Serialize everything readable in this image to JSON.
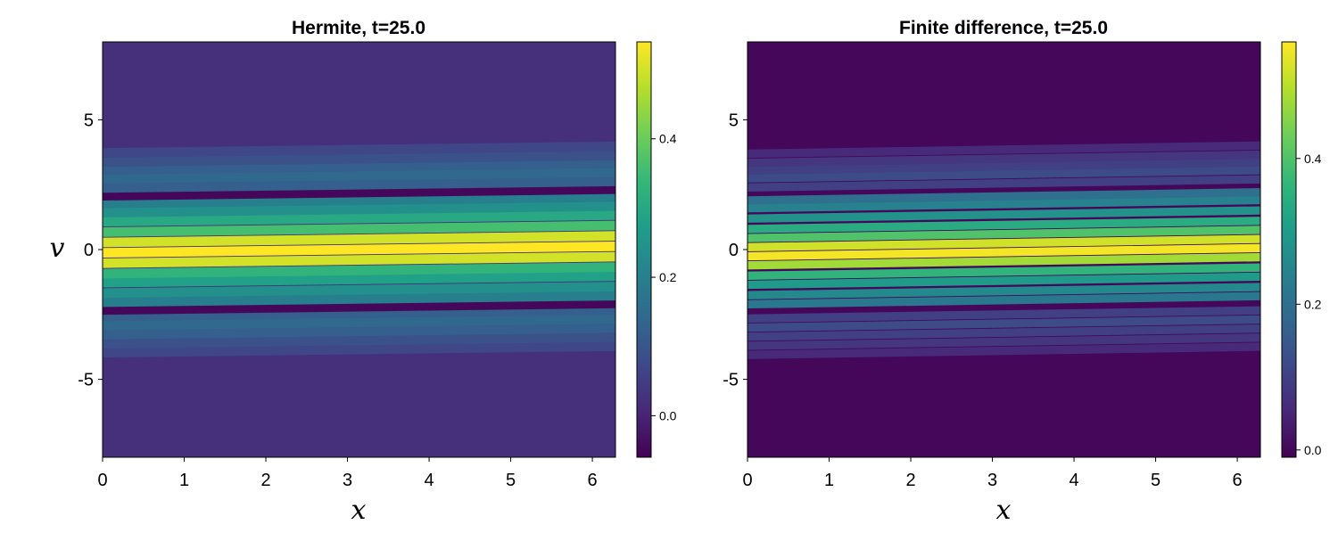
{
  "colors": {
    "viridis": [
      "#440154",
      "#482878",
      "#3e4989",
      "#31688e",
      "#26828e",
      "#1f9e89",
      "#35b779",
      "#6ece58",
      "#b5de2b",
      "#fde725"
    ]
  },
  "chart_data": [
    {
      "type": "heatmap",
      "title": "Hermite, t=25.0",
      "xlabel": "x",
      "ylabel": "v",
      "xlim": [
        0,
        6.2832
      ],
      "ylim": [
        -8,
        8
      ],
      "xticks": [
        0,
        1,
        2,
        3,
        4,
        5,
        6
      ],
      "xtick_labels": [
        "0",
        "1",
        "2",
        "3",
        "4",
        "5",
        "6"
      ],
      "yticks": [
        -5,
        0,
        5
      ],
      "ytick_labels": [
        "-5",
        "0",
        "5"
      ],
      "colormap": "viridis",
      "colorbar": {
        "range": [
          -0.06,
          0.54
        ],
        "ticks": [
          0.0,
          0.2,
          0.4
        ],
        "tick_labels": [
          "0.0",
          "0.2",
          "0.4"
        ]
      },
      "background_value": 0.02,
      "tilt_per_unit_x": 0.04,
      "stripe_spacing": 0.37,
      "stripes": [
        {
          "v": -3.85,
          "value": 0.07
        },
        {
          "v": -3.5,
          "value": 0.09
        },
        {
          "v": -3.15,
          "value": 0.12
        },
        {
          "v": -2.8,
          "value": 0.14
        },
        {
          "v": -2.45,
          "value": 0.12
        },
        {
          "v": -2.2,
          "value": -0.05
        },
        {
          "v": -1.9,
          "value": 0.2
        },
        {
          "v": -1.55,
          "value": 0.24
        },
        {
          "v": -1.15,
          "value": 0.28
        },
        {
          "v": -0.8,
          "value": 0.33
        },
        {
          "v": -0.4,
          "value": 0.5
        },
        {
          "v": 0.0,
          "value": 0.54
        },
        {
          "v": 0.4,
          "value": 0.5
        },
        {
          "v": 0.8,
          "value": 0.36
        },
        {
          "v": 1.2,
          "value": 0.3
        },
        {
          "v": 1.55,
          "value": 0.24
        },
        {
          "v": 1.9,
          "value": 0.2
        },
        {
          "v": 2.2,
          "value": -0.05
        },
        {
          "v": 2.5,
          "value": 0.12
        },
        {
          "v": 2.85,
          "value": 0.14
        },
        {
          "v": 3.2,
          "value": 0.12
        },
        {
          "v": 3.5,
          "value": 0.09
        },
        {
          "v": 3.85,
          "value": 0.07
        }
      ]
    },
    {
      "type": "heatmap",
      "title": "Finite difference, t=25.0",
      "xlabel": "x",
      "ylabel": "",
      "xlim": [
        0,
        6.2832
      ],
      "ylim": [
        -8,
        8
      ],
      "xticks": [
        0,
        1,
        2,
        3,
        4,
        5,
        6
      ],
      "xtick_labels": [
        "0",
        "1",
        "2",
        "3",
        "4",
        "5",
        "6"
      ],
      "yticks": [
        -5,
        0,
        5
      ],
      "ytick_labels": [
        "-5",
        "0",
        "5"
      ],
      "colormap": "viridis",
      "colorbar": {
        "range": [
          -0.01,
          0.56
        ],
        "ticks": [
          0.0,
          0.2,
          0.4
        ],
        "tick_labels": [
          "0.0",
          "0.2",
          "0.4"
        ]
      },
      "background_value": 0.0,
      "tilt_per_unit_x": 0.05,
      "stripe_spacing": 0.32,
      "stripes": [
        {
          "v": -3.9,
          "value": 0.06
        },
        {
          "v": -3.55,
          "value": 0.08
        },
        {
          "v": -3.2,
          "value": 0.1
        },
        {
          "v": -2.85,
          "value": 0.12
        },
        {
          "v": -2.5,
          "value": 0.1
        },
        {
          "v": -1.95,
          "value": 0.22
        },
        {
          "v": -1.6,
          "value": 0.26
        },
        {
          "v": -1.2,
          "value": 0.3
        },
        {
          "v": -0.85,
          "value": 0.36
        },
        {
          "v": -0.45,
          "value": 0.48
        },
        {
          "v": -0.1,
          "value": 0.55
        },
        {
          "v": 0.25,
          "value": 0.52
        },
        {
          "v": 0.6,
          "value": 0.4
        },
        {
          "v": 0.95,
          "value": 0.34
        },
        {
          "v": 1.35,
          "value": 0.28
        },
        {
          "v": 1.75,
          "value": 0.24
        },
        {
          "v": 2.05,
          "value": 0.2
        },
        {
          "v": 2.55,
          "value": 0.1
        },
        {
          "v": 2.9,
          "value": 0.12
        },
        {
          "v": 3.2,
          "value": 0.1
        },
        {
          "v": 3.5,
          "value": 0.08
        },
        {
          "v": 3.85,
          "value": 0.06
        }
      ]
    }
  ]
}
